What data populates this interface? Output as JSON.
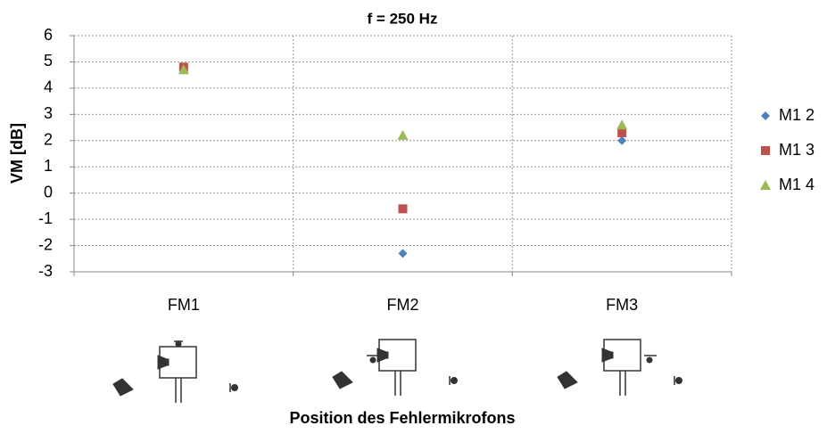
{
  "chart_data": {
    "type": "scatter",
    "title": "f = 250 Hz",
    "y_label": "VM [dB]",
    "x_label": "Position des Fehlermikrofons",
    "categories": [
      "FM1",
      "FM2",
      "FM3"
    ],
    "series": [
      {
        "name": "M1 2",
        "color": "#4f81bd",
        "marker": "diamond",
        "values": [
          4.75,
          -2.3,
          2.0
        ]
      },
      {
        "name": "M1 3",
        "color": "#c0504d",
        "marker": "square",
        "values": [
          4.8,
          -0.6,
          2.3
        ]
      },
      {
        "name": "M1 4",
        "color": "#9bbb59",
        "marker": "triangle",
        "values": [
          4.7,
          2.2,
          2.6
        ]
      }
    ],
    "ylim": [
      -3,
      6
    ],
    "yticks": [
      -3,
      -2,
      -1,
      0,
      1,
      2,
      3,
      4,
      5,
      6
    ],
    "grid": true,
    "legend": "right"
  }
}
